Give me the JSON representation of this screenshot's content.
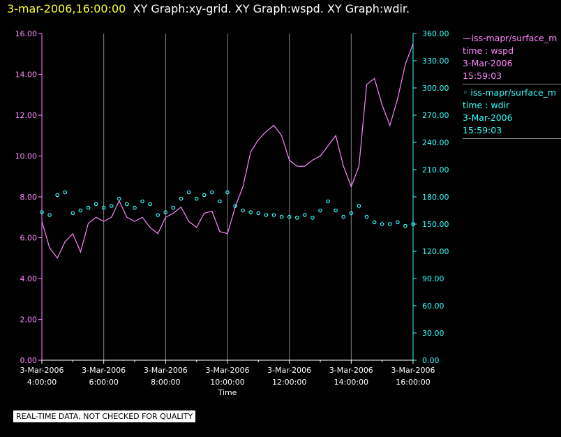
{
  "header": {
    "timestamp": "3-mar-2006,16:00:00",
    "title": "XY Graph:xy-grid.  XY Graph:wspd.  XY Graph:wdir."
  },
  "legend": [
    {
      "lines": [
        "—iss-mapr/surface_m",
        "time : wspd",
        "3-Mar-2006",
        "15:59:03"
      ],
      "color": "#ff88ff"
    },
    {
      "lines": [
        "◦ iss-mapr/surface_m",
        "time : wdir",
        "3-Mar-2006",
        "15:59:03"
      ],
      "color": "#33ffff"
    }
  ],
  "disclaimer": "REAL-TIME DATA, NOT CHECKED FOR QUALITY",
  "chart_data": {
    "type": "line",
    "xlabel": "Time",
    "x_ticks": [
      {
        "date": "3-Mar-2006",
        "time": "4:00:00"
      },
      {
        "date": "3-Mar-2006",
        "time": "6:00:00"
      },
      {
        "date": "3-Mar-2006",
        "time": "8:00:00"
      },
      {
        "date": "3-Mar-2006",
        "time": "10:00:00"
      },
      {
        "date": "3-Mar-2006",
        "time": "12:00:00"
      },
      {
        "date": "3-Mar-2006",
        "time": "14:00:00"
      },
      {
        "date": "3-Mar-2006",
        "time": "16:00:00"
      }
    ],
    "xlim": [
      "3-Mar-2006 4:00:00",
      "3-Mar-2006 16:00:00"
    ],
    "y_left": {
      "ticks": [
        "0.00",
        "2.00",
        "4.00",
        "6.00",
        "8.00",
        "10.00",
        "12.00",
        "14.00",
        "16.00"
      ],
      "range": [
        0,
        16
      ],
      "color": "#ff88ff"
    },
    "y_right": {
      "ticks": [
        "0.00",
        "30.00",
        "60.00",
        "90.00",
        "120.00",
        "150.00",
        "180.00",
        "210.00",
        "240.00",
        "270.00",
        "300.00",
        "330.00",
        "360.00"
      ],
      "range": [
        0,
        360
      ],
      "color": "#33ffff"
    },
    "grid": "vertical",
    "series": [
      {
        "axis": "left",
        "style": "line",
        "color": "#ff88ff",
        "time": [
          "04:00",
          "04:15",
          "04:30",
          "04:45",
          "05:00",
          "05:15",
          "05:30",
          "05:45",
          "06:00",
          "06:15",
          "06:30",
          "06:45",
          "07:00",
          "07:15",
          "07:30",
          "07:45",
          "08:00",
          "08:15",
          "08:30",
          "08:45",
          "09:00",
          "09:15",
          "09:30",
          "09:45",
          "10:00",
          "10:15",
          "10:30",
          "10:45",
          "11:00",
          "11:15",
          "11:30",
          "11:45",
          "12:00",
          "12:15",
          "12:30",
          "12:45",
          "13:00",
          "13:15",
          "13:30",
          "13:45",
          "14:00",
          "14:15",
          "14:30",
          "14:45",
          "15:00",
          "15:15",
          "15:30",
          "15:45",
          "16:00"
        ],
        "values": [
          6.8,
          5.5,
          5.0,
          5.8,
          6.2,
          5.3,
          6.7,
          7.0,
          6.8,
          7.0,
          7.8,
          7.0,
          6.8,
          7.0,
          6.5,
          6.2,
          7.0,
          7.2,
          7.5,
          6.8,
          6.5,
          7.2,
          7.3,
          6.3,
          6.2,
          7.5,
          8.5,
          10.2,
          10.8,
          11.2,
          11.5,
          11.0,
          9.8,
          9.5,
          9.5,
          9.8,
          10.0,
          10.5,
          11.0,
          9.5,
          8.5,
          9.5,
          13.5,
          13.8,
          12.5,
          11.5,
          12.8,
          14.5,
          15.5
        ]
      },
      {
        "axis": "right",
        "style": "circles",
        "color": "#33ffff",
        "time": [
          "04:00",
          "04:15",
          "04:30",
          "04:45",
          "05:00",
          "05:15",
          "05:30",
          "05:45",
          "06:00",
          "06:15",
          "06:30",
          "06:45",
          "07:00",
          "07:15",
          "07:30",
          "07:45",
          "08:00",
          "08:15",
          "08:30",
          "08:45",
          "09:00",
          "09:15",
          "09:30",
          "09:45",
          "10:00",
          "10:15",
          "10:30",
          "10:45",
          "11:00",
          "11:15",
          "11:30",
          "11:45",
          "12:00",
          "12:15",
          "12:30",
          "12:45",
          "13:00",
          "13:15",
          "13:30",
          "13:45",
          "14:00",
          "14:15",
          "14:30",
          "14:45",
          "15:00",
          "15:15",
          "15:30",
          "15:45",
          "16:00"
        ],
        "values": [
          163,
          160,
          182,
          185,
          162,
          165,
          168,
          172,
          168,
          170,
          178,
          172,
          168,
          175,
          172,
          160,
          163,
          168,
          178,
          185,
          178,
          182,
          185,
          175,
          185,
          170,
          165,
          163,
          162,
          160,
          160,
          158,
          158,
          157,
          160,
          157,
          165,
          175,
          165,
          158,
          162,
          170,
          158,
          152,
          150,
          150,
          152,
          148,
          150
        ]
      }
    ]
  }
}
